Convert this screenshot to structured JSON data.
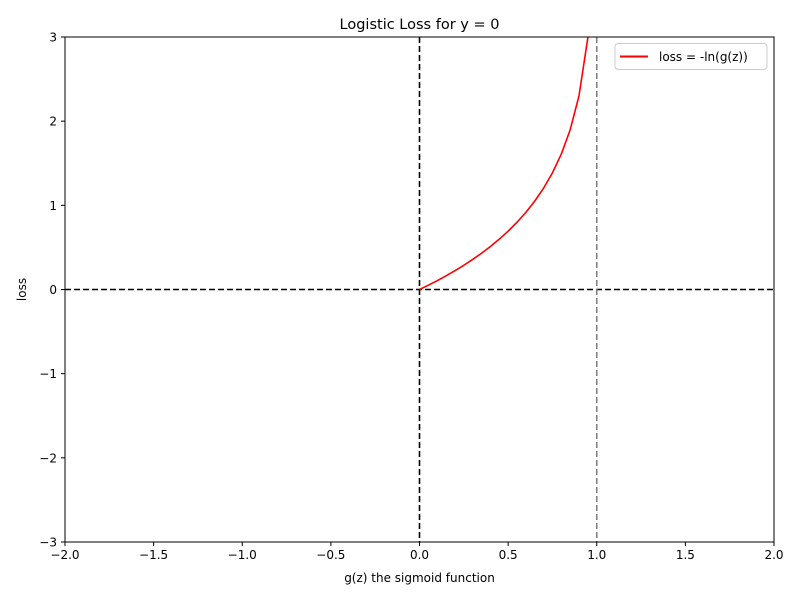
{
  "chart_data": {
    "type": "line",
    "title": "Logistic Loss for y = 0",
    "xlabel": "g(z) the sigmoid function",
    "ylabel": "loss",
    "xlim": [
      -2.0,
      2.0
    ],
    "ylim": [
      -3,
      3
    ],
    "x_ticks": [
      -2.0,
      -1.5,
      -1.0,
      -0.5,
      0.0,
      0.5,
      1.0,
      1.5,
      2.0
    ],
    "x_tick_labels": [
      "−2.0",
      "−1.5",
      "−1.0",
      "−0.5",
      "0.0",
      "0.5",
      "1.0",
      "1.5",
      "2.0"
    ],
    "y_ticks": [
      -3,
      -2,
      -1,
      0,
      1,
      2,
      3
    ],
    "y_tick_labels": [
      "−3",
      "−2",
      "−1",
      "0",
      "1",
      "2",
      "3"
    ],
    "grid": false,
    "legend_position": "top-right",
    "series": [
      {
        "name": "loss = -ln(g(z))",
        "color": "#ff0000",
        "x": [
          0.0,
          0.05,
          0.1,
          0.15,
          0.2,
          0.25,
          0.3,
          0.35,
          0.4,
          0.45,
          0.5,
          0.55,
          0.6,
          0.65,
          0.7,
          0.75,
          0.8,
          0.85,
          0.9,
          0.95
        ],
        "y": [
          0.0,
          0.051,
          0.105,
          0.163,
          0.223,
          0.288,
          0.357,
          0.431,
          0.511,
          0.598,
          0.693,
          0.799,
          0.916,
          1.05,
          1.204,
          1.386,
          1.609,
          1.897,
          2.303,
          2.996
        ]
      }
    ],
    "reference_lines": [
      {
        "orientation": "horizontal",
        "value": 0,
        "color": "#000000",
        "style": "dashed"
      },
      {
        "orientation": "vertical",
        "value": 0,
        "color": "#000000",
        "style": "dashed"
      },
      {
        "orientation": "vertical",
        "value": 1,
        "color": "#808080",
        "style": "dashed"
      }
    ]
  }
}
